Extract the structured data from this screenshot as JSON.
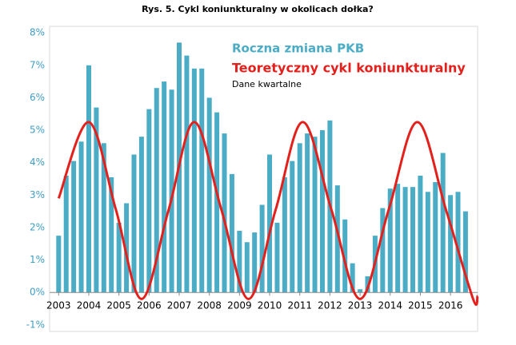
{
  "chart_data": {
    "type": "bar-line",
    "title": "Rys. 5. Cykl koniunkturalny w okolicach dołka?",
    "xlim": [
      2002.7,
      2016.9
    ],
    "xticks": [
      2003,
      2004,
      2005,
      2006,
      2007,
      2008,
      2009,
      2010,
      2011,
      2012,
      2013,
      2014,
      2015,
      2016
    ],
    "ylim": [
      -1.2,
      8.2
    ],
    "yticks": [
      {
        "value": -1,
        "label": "-1%"
      },
      {
        "value": 0,
        "label": "0%"
      },
      {
        "value": 1,
        "label": "1%"
      },
      {
        "value": 2,
        "label": "2%"
      },
      {
        "value": 3,
        "label": "3%"
      },
      {
        "value": 4,
        "label": "4%"
      },
      {
        "value": 5,
        "label": "5%"
      },
      {
        "value": 6,
        "label": "6%"
      },
      {
        "value": 7,
        "label": "7%"
      },
      {
        "value": 8,
        "label": "8%"
      }
    ],
    "grid": false,
    "note": "Dane kwartalne",
    "series": [
      {
        "name": "Roczna zmiana PKB",
        "type": "bar",
        "color": "#4bacc6",
        "x": [
          2003,
          2003.25,
          2003.5,
          2003.75,
          2004,
          2004.25,
          2004.5,
          2004.75,
          2005,
          2005.25,
          2005.5,
          2005.75,
          2006,
          2006.25,
          2006.5,
          2006.75,
          2007,
          2007.25,
          2007.5,
          2007.75,
          2008,
          2008.25,
          2008.5,
          2008.75,
          2009,
          2009.25,
          2009.5,
          2009.75,
          2010,
          2010.25,
          2010.5,
          2010.75,
          2011,
          2011.25,
          2011.5,
          2011.75,
          2012,
          2012.25,
          2012.5,
          2012.75,
          2013,
          2013.25,
          2013.5,
          2013.75,
          2014,
          2014.25,
          2014.5,
          2014.75,
          2015,
          2015.25,
          2015.5,
          2015.75,
          2016,
          2016.25,
          2016.5
        ],
        "values": [
          1.75,
          3.6,
          4.05,
          4.65,
          7.0,
          5.7,
          4.6,
          3.55,
          2.15,
          2.75,
          4.25,
          4.8,
          5.65,
          6.3,
          6.5,
          6.25,
          7.7,
          7.3,
          6.9,
          6.9,
          6.0,
          5.55,
          4.9,
          3.65,
          1.9,
          1.55,
          1.85,
          2.7,
          4.25,
          2.15,
          3.55,
          4.05,
          4.6,
          4.9,
          4.8,
          5.0,
          5.3,
          3.3,
          2.25,
          0.9,
          0.1,
          0.5,
          1.75,
          2.6,
          3.2,
          3.35,
          3.25,
          3.25,
          3.6,
          3.1,
          3.4,
          4.3,
          3.0,
          3.1,
          2.5
        ]
      },
      {
        "name": "Teoretyczny cykl koniunkturalny",
        "type": "line",
        "color": "#e3201b",
        "x": [
          2003,
          2004,
          2004.9,
          2005.75,
          2006.65,
          2007.5,
          2008.4,
          2009.3,
          2010.2,
          2011.1,
          2012.05,
          2013.0,
          2013.95,
          2014.9,
          2015.85,
          2016.75,
          2016.9
        ],
        "values": [
          2.9,
          5.25,
          2.55,
          -0.2,
          2.55,
          5.25,
          2.55,
          -0.2,
          2.55,
          5.25,
          2.55,
          -0.2,
          2.55,
          5.25,
          2.55,
          -0.2,
          -0.1
        ]
      }
    ]
  }
}
